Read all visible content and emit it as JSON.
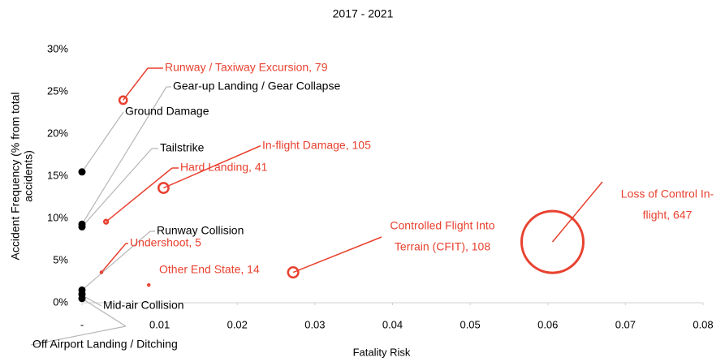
{
  "chart_data": {
    "type": "bubble",
    "title": "2017 - 2021",
    "xlabel": "Fatality Risk",
    "ylabel": [
      "Accident Frequency (% from total",
      "accidents)"
    ],
    "xlim": [
      0,
      0.08
    ],
    "xticks": [
      {
        "value": 0,
        "label": "-"
      },
      0.01,
      0.02,
      0.03,
      0.04,
      0.05,
      0.06,
      0.07,
      0.08
    ],
    "ylim": [
      0,
      30
    ],
    "yticks": [
      {
        "value": 0,
        "label": "0%"
      },
      {
        "value": 5,
        "label": "5%"
      },
      {
        "value": 10,
        "label": "10%"
      },
      {
        "value": 15,
        "label": "15%"
      },
      {
        "value": 20,
        "label": "20%"
      },
      {
        "value": 25,
        "label": "25%"
      },
      {
        "value": 30,
        "label": "30%"
      }
    ],
    "grid": false,
    "points": [
      {
        "label": [
          "Runway / Taxiway Excursion,  79"
        ],
        "x": 0.0053,
        "y": 24.0,
        "size": 79,
        "color": "#e8412f"
      },
      {
        "label": [
          "Gear-up Landing / Gear Collapse"
        ],
        "x": 0.0,
        "y": 9.3,
        "size": 70,
        "color": "#000000"
      },
      {
        "label": [
          "Ground Damage"
        ],
        "x": 0.0,
        "y": 15.5,
        "size": 70,
        "color": "#000000"
      },
      {
        "label": [
          "Tailstrike"
        ],
        "x": 0.0,
        "y": 9.0,
        "size": 70,
        "color": "#000000"
      },
      {
        "label": [
          "In-flight Damage,  105"
        ],
        "x": 0.0105,
        "y": 13.6,
        "size": 105,
        "color": "#e8412f"
      },
      {
        "label": [
          "Hard Landing,  41"
        ],
        "x": 0.0031,
        "y": 9.6,
        "size": 41,
        "color": "#e8412f"
      },
      {
        "label": [
          "Runway Collision"
        ],
        "x": 0.0,
        "y": 1.5,
        "size": 60,
        "color": "#000000"
      },
      {
        "label": [
          "Undershoot,  5"
        ],
        "x": 0.0025,
        "y": 3.6,
        "size": 5,
        "color": "#e8412f"
      },
      {
        "label": [
          "Other End State,  14"
        ],
        "x": 0.0086,
        "y": 2.1,
        "size": 14,
        "color": "#e8412f"
      },
      {
        "label": [
          "Controlled Flight Into",
          "Terrain (CFIT),  108"
        ],
        "x": 0.0272,
        "y": 3.6,
        "size": 108,
        "color": "#e8412f"
      },
      {
        "label": [
          "Loss of Control In-",
          "flight,  647"
        ],
        "x": 0.0606,
        "y": 7.2,
        "size": 647,
        "color": "#e8412f"
      },
      {
        "label": [
          "Mid-air Collision"
        ],
        "x": 0.0,
        "y": 1.0,
        "size": 50,
        "color": "#000000"
      },
      {
        "label": [
          "Off Airport Landing / Ditching"
        ],
        "x": 0.0,
        "y": 0.5,
        "size": 50,
        "color": "#000000"
      }
    ]
  }
}
